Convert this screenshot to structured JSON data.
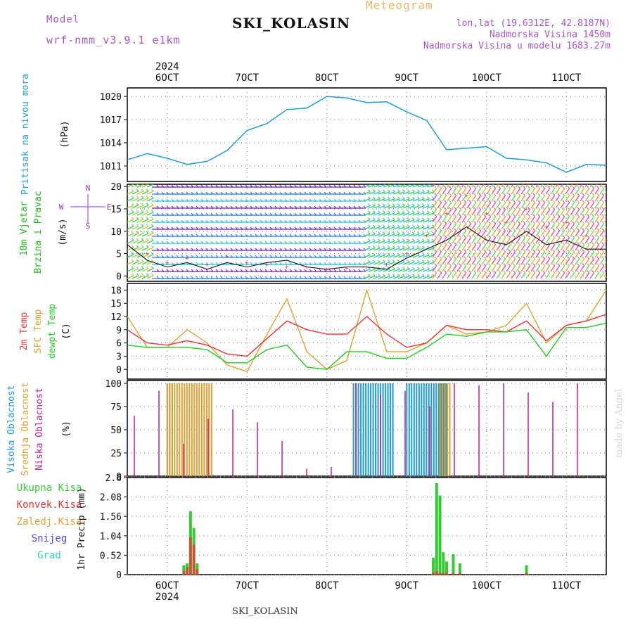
{
  "header": {
    "model_label": "Model",
    "model_name": "wrf-nmm_v3.9.1 e1km",
    "meteogram_label": "Meteogram",
    "station": "SKI_KOLASIN",
    "lonlat": "lon,lat (19.6312E, 42.8187N)",
    "altitude": "Nadmorska Visina 1450m",
    "model_altitude": "Nadmorska Visina u modelu 1683.27m",
    "footer_station": "SKI_KOLASIN",
    "credit": "made by Angel"
  },
  "colors": {
    "pressure": "#1e9be0",
    "temp2m": "#ee3333",
    "sfc": "#e0a030",
    "dew": "#22cc22",
    "high_cloud": "#1e9be0",
    "mid_cloud": "#e0a030",
    "low_cloud": "#c02090",
    "precip": "#33cc33",
    "conv": "#ee3333",
    "wind_title": "#22bb22",
    "compass": "#9933cc",
    "header_purple": "#a855cc",
    "meteogram": "#e8b860",
    "grid": "#888888"
  },
  "time_axis": {
    "year": "2024",
    "labels": [
      "6OCT",
      "7OCT",
      "8OCT",
      "9OCT",
      "10OCT",
      "11OCT"
    ],
    "start": "2024-10-05T12:00",
    "end": "2024-10-11T12:00"
  },
  "chart_data": [
    {
      "type": "line",
      "title": "Pritisak na nivou mora",
      "ylabel": "(hPa)",
      "yticks": [
        1011,
        1014,
        1017,
        1020
      ],
      "ylim": [
        1009.0,
        1021.1
      ],
      "x": [
        "5-12",
        "5-18",
        "6-00",
        "6-06",
        "6-12",
        "6-18",
        "7-00",
        "7-06",
        "7-12",
        "7-18",
        "8-00",
        "8-06",
        "8-12",
        "8-18",
        "9-00",
        "9-06",
        "9-12",
        "9-18",
        "10-00",
        "10-06",
        "10-12",
        "10-18",
        "11-00",
        "11-06",
        "11-12"
      ],
      "series": [
        {
          "name": "pressure",
          "values": [
            1011.8,
            1012.6,
            1012.0,
            1011.2,
            1011.6,
            1013.0,
            1015.6,
            1016.5,
            1018.3,
            1018.5,
            1020.0,
            1019.8,
            1019.2,
            1019.3,
            1018.0,
            1016.9,
            1013.1,
            1013.3,
            1013.5,
            1012.0,
            1011.8,
            1011.4,
            1010.2,
            1011.2,
            1011.1
          ]
        }
      ]
    },
    {
      "type": "line",
      "title": "10m Vjetar Brzina i Pravac",
      "ylabel": "(m/s)",
      "yticks": [
        0,
        5,
        10,
        15,
        20
      ],
      "ylim": [
        -1.2,
        20.5
      ],
      "compass": {
        "north": "N",
        "south": "S",
        "east": "E",
        "west": "W"
      },
      "x": [
        "5-12",
        "5-18",
        "6-00",
        "6-06",
        "6-12",
        "6-18",
        "7-00",
        "7-06",
        "7-12",
        "7-18",
        "8-00",
        "8-06",
        "8-12",
        "8-18",
        "9-00",
        "9-06",
        "9-12",
        "9-18",
        "10-00",
        "10-06",
        "10-12",
        "10-18",
        "11-00",
        "11-06",
        "11-12"
      ],
      "series": [
        {
          "name": "speed",
          "values": [
            7,
            3.5,
            2,
            3,
            1.5,
            3,
            2,
            3,
            3.5,
            2,
            1.5,
            2,
            2,
            1.5,
            4,
            6,
            8,
            11,
            8,
            7,
            10,
            7,
            8,
            6,
            6
          ]
        },
        {
          "name": "gust",
          "values": [
            10,
            5,
            3,
            4,
            2.5,
            4.5,
            3,
            2.5,
            2,
            2,
            1.5,
            1.8,
            2,
            2.5,
            5,
            9,
            14,
            18,
            14,
            12,
            15,
            11,
            12,
            9,
            8
          ]
        }
      ]
    },
    {
      "type": "line",
      "title": "2m Temp / SFC Temp / dewpt Temp",
      "ylabel": "(C)",
      "yticks": [
        0,
        3,
        6,
        9,
        12,
        15,
        18
      ],
      "ylim": [
        -2.2,
        19.5
      ],
      "x": [
        "5-12",
        "5-18",
        "6-00",
        "6-06",
        "6-12",
        "6-18",
        "7-00",
        "7-06",
        "7-12",
        "7-18",
        "8-00",
        "8-06",
        "8-12",
        "8-18",
        "9-00",
        "9-06",
        "9-12",
        "9-18",
        "10-00",
        "10-06",
        "10-12",
        "10-18",
        "11-00",
        "11-06",
        "11-12"
      ],
      "series": [
        {
          "name": "2m Temp",
          "values": [
            9,
            6,
            5.5,
            6.5,
            5.5,
            3.5,
            3,
            7,
            11,
            9,
            8,
            8,
            12,
            8,
            5,
            6,
            10,
            9,
            9,
            8.5,
            11,
            6.5,
            10,
            11,
            12.5
          ]
        },
        {
          "name": "SFC Temp",
          "values": [
            12,
            5,
            5,
            9,
            6,
            1,
            -0.5,
            8,
            16,
            4,
            0,
            2,
            18,
            4,
            4,
            6,
            10,
            8,
            8.5,
            10,
            15,
            6,
            10,
            11,
            18
          ]
        },
        {
          "name": "dewpt Temp",
          "values": [
            5.5,
            5,
            5,
            5,
            4.5,
            1.5,
            1.5,
            4.5,
            5.5,
            0.5,
            0,
            4,
            4,
            2.5,
            2.5,
            5,
            8,
            7.5,
            8.5,
            8.5,
            9,
            3,
            9.5,
            9.5,
            10.5
          ]
        }
      ]
    },
    {
      "type": "bar",
      "title": "Visoka Oblacnost / Srednja Oblacnost / Niska Oblacnost",
      "ylabel": "(%)",
      "yticks": [
        0,
        25,
        50,
        75,
        100
      ],
      "ylim": [
        0,
        103
      ],
      "series": [
        {
          "name": "Visoka Oblacnost",
          "segments": [
            {
              "from": "6-00",
              "to": "6-02",
              "value": 100
            },
            {
              "from": "8-08",
              "to": "8-20",
              "value": 100
            },
            {
              "from": "9-00",
              "to": "9-12",
              "value": 100
            }
          ]
        },
        {
          "name": "Srednja Oblacnost",
          "segments": [
            {
              "from": "6-00",
              "to": "6-14",
              "value": 100
            },
            {
              "from": "9-10",
              "to": "9-13",
              "value": 100
            }
          ]
        },
        {
          "name": "Niska Oblacnost",
          "values_sample": [
            65,
            92,
            35,
            62,
            72,
            58,
            38,
            8,
            10,
            100,
            88,
            92,
            75,
            100,
            98,
            100,
            90,
            80,
            100
          ]
        }
      ]
    },
    {
      "type": "bar",
      "title": "Ukupna Kisa / Konvek.Kisa / Zaledj.Kisa / Snijeg / Grad",
      "ylabel": "1hr Precip (mm)",
      "yticks": [
        0,
        0.52,
        1.04,
        1.56,
        2.08,
        2.6
      ],
      "ytick_labels": [
        "0",
        "0.52",
        "1.04",
        "1.56",
        "2.08",
        "2.6"
      ],
      "ylim": [
        0,
        2.6
      ],
      "legend": [
        "Ukupna Kisa",
        "Konvek.Kisa",
        "Zaledj.Kisa",
        "Snijeg",
        "Grad"
      ],
      "x": [
        "6-05",
        "6-06",
        "6-07",
        "6-08",
        "6-09",
        "9-08",
        "9-09",
        "9-10",
        "9-11",
        "9-12",
        "9-14",
        "9-16",
        "10-12"
      ],
      "series": [
        {
          "name": "Ukupna Kisa",
          "values": [
            0.25,
            0.3,
            1.7,
            1.25,
            0.3,
            0.45,
            2.45,
            2.12,
            0.6,
            0.35,
            0.55,
            0.3,
            0.25
          ]
        },
        {
          "name": "Konvek.Kisa",
          "values": [
            0.1,
            0.2,
            1.0,
            0.8,
            0.15,
            0.05,
            0.1,
            0.05,
            0.05,
            0.05,
            0.05,
            0.05,
            0.05
          ]
        }
      ]
    }
  ]
}
